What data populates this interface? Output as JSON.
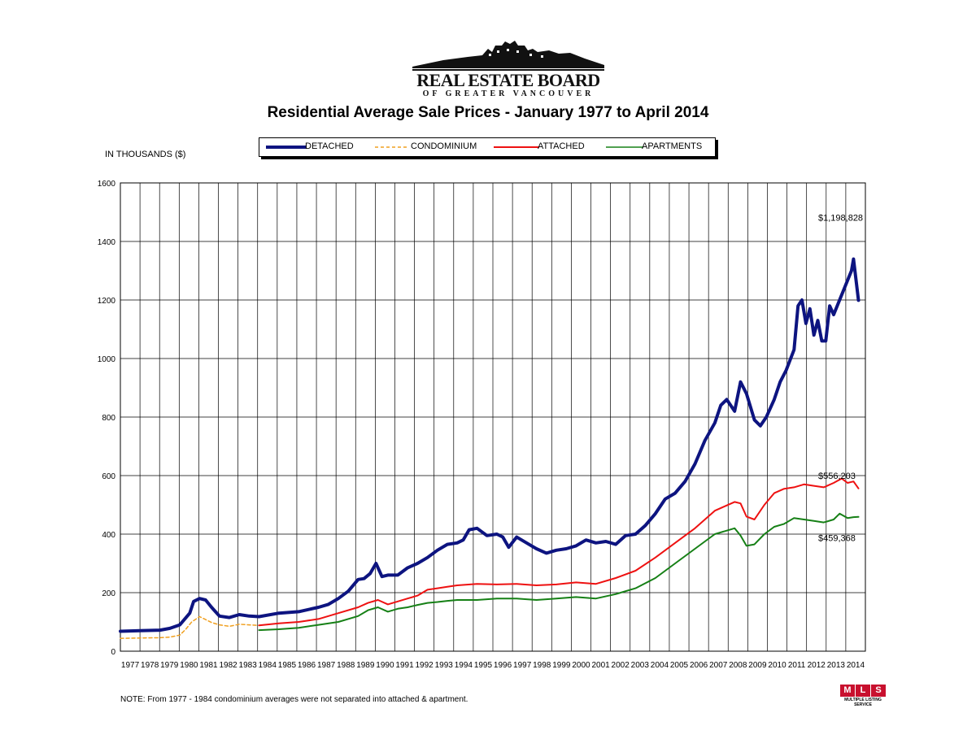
{
  "logo": {
    "main": "REAL ESTATE BOARD",
    "sub": "OF GREATER VANCOUVER"
  },
  "mls_logo": {
    "letters": [
      "M",
      "L",
      "S"
    ],
    "caption": "MULTIPLE LISTING SERVICE"
  },
  "note": "NOTE:  From 1977 - 1984 condominium averages were not separated into attached & apartment.",
  "colors": {
    "detached": "#0d1480",
    "condominium": "#f0a020",
    "attached": "#ee1111",
    "apartments": "#168016",
    "grid": "#000000"
  },
  "chart_data": {
    "type": "line",
    "title": "Residential Average Sale Prices  -  January 1977 to April 2014",
    "ylabel": "IN THOUSANDS ($)",
    "xlabel": "",
    "ylim": [
      0,
      1600
    ],
    "yticks": [
      0,
      200,
      400,
      600,
      800,
      1000,
      1200,
      1400,
      1600
    ],
    "xticks": [
      "1977",
      "1978",
      "1979",
      "1980",
      "1981",
      "1982",
      "1983",
      "1984",
      "1985",
      "1986",
      "1987",
      "1988",
      "1989",
      "1990",
      "1991",
      "1992",
      "1993",
      "1994",
      "1995",
      "1996",
      "1997",
      "1998",
      "1999",
      "2000",
      "2001",
      "2002",
      "2003",
      "2004",
      "2005",
      "2006",
      "2007",
      "2008",
      "2009",
      "2010",
      "2011",
      "2012",
      "2013",
      "2014"
    ],
    "grid": true,
    "legend_position": "top",
    "annotations": [
      {
        "text": "$1,198,828",
        "x": 2014.25,
        "y": 1198.8
      },
      {
        "text": "$556,203",
        "x": 2014.25,
        "y": 556.2
      },
      {
        "text": "$459,368",
        "x": 2014.25,
        "y": 459.4
      }
    ],
    "series": [
      {
        "name": "DETACHED",
        "key": "detached",
        "style": "solid-thick",
        "x": [
          1977,
          1978,
          1979,
          1979.5,
          1980,
          1980.5,
          1980.7,
          1981,
          1981.3,
          1981.6,
          1982,
          1982.5,
          1983,
          1983.5,
          1984,
          1985,
          1986,
          1987,
          1987.5,
          1988,
          1988.5,
          1989,
          1989.3,
          1989.6,
          1989.9,
          1990.2,
          1990.5,
          1991,
          1991.5,
          1992,
          1992.5,
          1993,
          1993.5,
          1994,
          1994.3,
          1994.6,
          1995,
          1995.5,
          1996,
          1996.3,
          1996.6,
          1997,
          1997.5,
          1998,
          1998.5,
          1999,
          1999.5,
          2000,
          2000.5,
          2001,
          2001.5,
          2002,
          2002.5,
          2003,
          2003.5,
          2004,
          2004.5,
          2005,
          2005.5,
          2006,
          2006.5,
          2007,
          2007.3,
          2007.6,
          2008,
          2008.3,
          2008.6,
          2009,
          2009.3,
          2009.6,
          2010,
          2010.3,
          2010.6,
          2011,
          2011.2,
          2011.4,
          2011.6,
          2011.8,
          2012,
          2012.2,
          2012.4,
          2012.6,
          2012.8,
          2013,
          2013.3,
          2013.6,
          2013.9,
          2014,
          2014.25
        ],
        "y": [
          68,
          70,
          72,
          78,
          90,
          130,
          170,
          180,
          175,
          150,
          120,
          115,
          125,
          120,
          118,
          130,
          135,
          150,
          160,
          180,
          205,
          245,
          248,
          265,
          300,
          255,
          260,
          260,
          285,
          300,
          320,
          345,
          365,
          370,
          380,
          415,
          420,
          395,
          400,
          390,
          355,
          390,
          370,
          350,
          335,
          345,
          350,
          360,
          380,
          370,
          375,
          365,
          395,
          400,
          430,
          470,
          520,
          540,
          580,
          640,
          720,
          780,
          840,
          860,
          820,
          920,
          880,
          790,
          770,
          800,
          860,
          920,
          960,
          1030,
          1180,
          1200,
          1120,
          1170,
          1080,
          1130,
          1060,
          1060,
          1180,
          1150,
          1200,
          1250,
          1300,
          1340,
          1199
        ]
      },
      {
        "name": "CONDOMINIUM",
        "key": "condominium",
        "style": "dashed",
        "x": [
          1977,
          1978,
          1979,
          1979.5,
          1980,
          1980.3,
          1980.6,
          1981,
          1981.3,
          1981.6,
          1982,
          1982.5,
          1983,
          1983.5,
          1984
        ],
        "y": [
          44,
          45,
          46,
          48,
          55,
          75,
          100,
          118,
          108,
          98,
          90,
          85,
          92,
          90,
          88
        ]
      },
      {
        "name": "ATTACHED",
        "key": "attached",
        "style": "solid",
        "x": [
          1984,
          1985,
          1986,
          1987,
          1988,
          1989,
          1989.5,
          1990,
          1990.5,
          1991,
          1991.5,
          1992,
          1992.5,
          1993,
          1993.5,
          1994,
          1995,
          1996,
          1997,
          1998,
          1999,
          2000,
          2001,
          2002,
          2003,
          2004,
          2005,
          2006,
          2007,
          2007.5,
          2008,
          2008.3,
          2008.6,
          2009,
          2009.5,
          2010,
          2010.5,
          2011,
          2011.5,
          2012,
          2012.5,
          2013,
          2013.4,
          2013.7,
          2014,
          2014.25
        ],
        "y": [
          88,
          95,
          100,
          110,
          130,
          150,
          165,
          175,
          160,
          170,
          180,
          190,
          210,
          215,
          220,
          225,
          230,
          228,
          230,
          225,
          228,
          235,
          230,
          250,
          275,
          320,
          370,
          420,
          480,
          495,
          510,
          505,
          460,
          450,
          500,
          540,
          555,
          560,
          570,
          565,
          560,
          575,
          590,
          575,
          580,
          556
        ]
      },
      {
        "name": "APARTMENTS",
        "key": "apartments",
        "style": "solid",
        "x": [
          1984,
          1985,
          1986,
          1987,
          1988,
          1989,
          1989.5,
          1990,
          1990.5,
          1991,
          1991.5,
          1992,
          1992.5,
          1993,
          1993.5,
          1994,
          1995,
          1996,
          1997,
          1998,
          1999,
          2000,
          2001,
          2002,
          2003,
          2004,
          2005,
          2006,
          2007,
          2007.5,
          2008,
          2008.3,
          2008.6,
          2009,
          2009.5,
          2010,
          2010.5,
          2011,
          2011.5,
          2012,
          2012.5,
          2013,
          2013.3,
          2013.7,
          2014,
          2014.25
        ],
        "y": [
          72,
          75,
          80,
          90,
          100,
          120,
          140,
          150,
          135,
          145,
          150,
          158,
          165,
          168,
          172,
          175,
          175,
          180,
          180,
          175,
          180,
          185,
          180,
          195,
          215,
          250,
          300,
          350,
          400,
          410,
          420,
          395,
          360,
          365,
          400,
          425,
          435,
          455,
          450,
          445,
          440,
          450,
          470,
          455,
          458,
          459
        ]
      }
    ]
  }
}
